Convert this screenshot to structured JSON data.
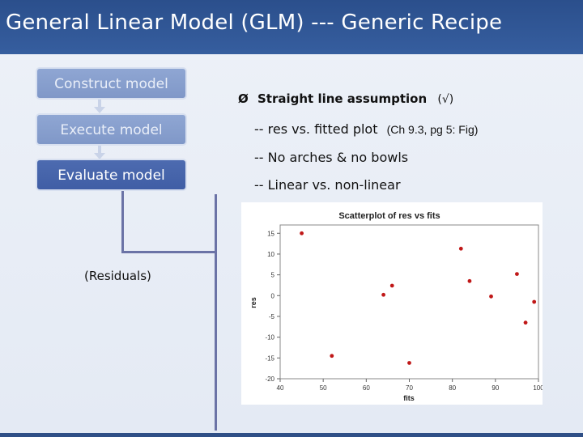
{
  "title": "General Linear Model (GLM) --- Generic Recipe",
  "steps": {
    "construct": "Construct model",
    "execute": "Execute model",
    "evaluate": "Evaluate model"
  },
  "residuals_label": "(Residuals)",
  "bullets": {
    "marker": "Ø",
    "heading": "Straight line assumption",
    "check": "(√)",
    "line1": "-- res vs. fitted plot",
    "line1_ref": "(Ch 9.3, pg 5: Fig)",
    "line2": "-- No arches & no bowls",
    "line3": "-- Linear vs. non-linear"
  },
  "colors": {
    "title_bg": "#2b4f8c",
    "step_light": "#8fa6d3",
    "step_dark": "#4d6bb0",
    "point": "#c01818"
  },
  "chart_data": {
    "type": "scatter",
    "title": "Scatterplot of res vs fits",
    "xlabel": "fits",
    "ylabel": "res",
    "xlim": [
      40,
      100
    ],
    "ylim": [
      -20,
      17
    ],
    "xticks": [
      40,
      50,
      60,
      70,
      80,
      90,
      100
    ],
    "yticks": [
      15,
      10,
      5,
      0,
      -5,
      -10,
      -15,
      -20
    ],
    "points": [
      {
        "x": 45,
        "y": 15
      },
      {
        "x": 52,
        "y": -14.5
      },
      {
        "x": 64,
        "y": 0.2
      },
      {
        "x": 66,
        "y": 2.4
      },
      {
        "x": 70,
        "y": -16.2
      },
      {
        "x": 82,
        "y": 11.3
      },
      {
        "x": 84,
        "y": 3.5
      },
      {
        "x": 89,
        "y": -0.2
      },
      {
        "x": 95,
        "y": 5.2
      },
      {
        "x": 97,
        "y": -6.5
      },
      {
        "x": 99,
        "y": -1.5
      }
    ]
  }
}
